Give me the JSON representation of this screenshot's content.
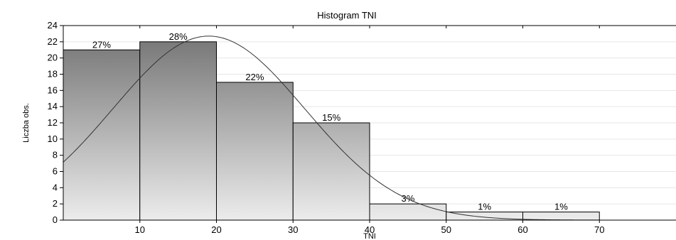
{
  "chart_data": {
    "type": "bar",
    "title": "Histogram   TNI",
    "xlabel": "TNI",
    "ylabel": "Liczba obs.",
    "bins": [
      {
        "x0": 0,
        "x1": 10,
        "value": 21,
        "label": "27%"
      },
      {
        "x0": 10,
        "x1": 20,
        "value": 22,
        "label": "28%"
      },
      {
        "x0": 20,
        "x1": 30,
        "value": 17,
        "label": "22%"
      },
      {
        "x0": 30,
        "x1": 40,
        "value": 12,
        "label": "15%"
      },
      {
        "x0": 40,
        "x1": 50,
        "value": 2,
        "label": "3%"
      },
      {
        "x0": 50,
        "x1": 60,
        "value": 1,
        "label": "1%"
      },
      {
        "x0": 60,
        "x1": 70,
        "value": 1,
        "label": "1%"
      }
    ],
    "xlim": [
      0,
      80
    ],
    "ylim": [
      0,
      24
    ],
    "x_ticks": [
      10,
      20,
      30,
      40,
      50,
      60,
      70
    ],
    "y_ticks": [
      0,
      2,
      4,
      6,
      8,
      10,
      12,
      14,
      16,
      18,
      20,
      22,
      24
    ],
    "normal_curve": {
      "mean": 19,
      "sd": 12.5,
      "peak": 22.7
    },
    "grid": true,
    "colors": {
      "bar_dark": "#6f6f6f",
      "bar_light": "#ececec",
      "grid": "#e6e6e6",
      "curve": "#333333"
    }
  }
}
